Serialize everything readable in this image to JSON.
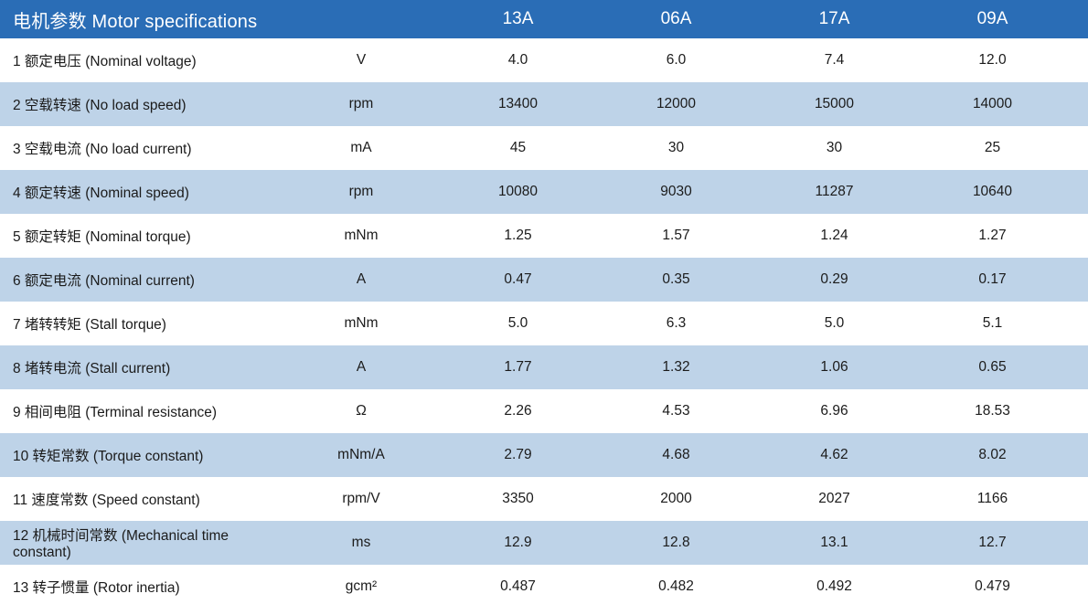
{
  "table": {
    "title": "电机参数 Motor specifications",
    "unit_column_header": "",
    "models": [
      "13A",
      "06A",
      "17A",
      "09A"
    ],
    "rows": [
      {
        "num": "1",
        "label": "额定电压 (Nominal voltage)",
        "unit": "V",
        "values": [
          "4.0",
          "6.0",
          "7.4",
          "12.0"
        ]
      },
      {
        "num": "2",
        "label": "空载转速 (No load speed)",
        "unit": "rpm",
        "values": [
          "13400",
          "12000",
          "15000",
          "14000"
        ]
      },
      {
        "num": "3",
        "label": "空载电流 (No load current)",
        "unit": "mA",
        "values": [
          "45",
          "30",
          "30",
          "25"
        ]
      },
      {
        "num": "4",
        "label": "额定转速 (Nominal speed)",
        "unit": "rpm",
        "values": [
          "10080",
          "9030",
          "11287",
          "10640"
        ]
      },
      {
        "num": "5",
        "label": "额定转矩 (Nominal torque)",
        "unit": "mNm",
        "values": [
          "1.25",
          "1.57",
          "1.24",
          "1.27"
        ]
      },
      {
        "num": "6",
        "label": "额定电流 (Nominal current)",
        "unit": "A",
        "values": [
          "0.47",
          "0.35",
          "0.29",
          "0.17"
        ]
      },
      {
        "num": "7",
        "label": "堵转转矩 (Stall torque)",
        "unit": "mNm",
        "values": [
          "5.0",
          "6.3",
          "5.0",
          "5.1"
        ]
      },
      {
        "num": "8",
        "label": "堵转电流 (Stall current)",
        "unit": "A",
        "values": [
          "1.77",
          "1.32",
          "1.06",
          "0.65"
        ]
      },
      {
        "num": "9",
        "label": "相间电阻 (Terminal resistance)",
        "unit": "Ω",
        "values": [
          "2.26",
          "4.53",
          "6.96",
          "18.53"
        ]
      },
      {
        "num": "10",
        "label": "转矩常数 (Torque constant)",
        "unit": "mNm/A",
        "values": [
          "2.79",
          "4.68",
          "4.62",
          "8.02"
        ]
      },
      {
        "num": "11",
        "label": "速度常数 (Speed constant)",
        "unit": "rpm/V",
        "values": [
          "3350",
          "2000",
          "2027",
          "1166"
        ]
      },
      {
        "num": "12",
        "label": "机械时间常数 (Mechanical time constant)",
        "unit": "ms",
        "values": [
          "12.9",
          "12.8",
          "13.1",
          "12.7"
        ]
      },
      {
        "num": "13",
        "label": "转子惯量 (Rotor inertia)",
        "unit": "gcm²",
        "values": [
          "0.487",
          "0.482",
          "0.492",
          "0.479"
        ]
      }
    ]
  },
  "colors": {
    "header_bg": "#2a6db6",
    "alt_row_bg": "#bed3e8",
    "header_text": "#ffffff",
    "body_text": "#1b1b1b"
  }
}
